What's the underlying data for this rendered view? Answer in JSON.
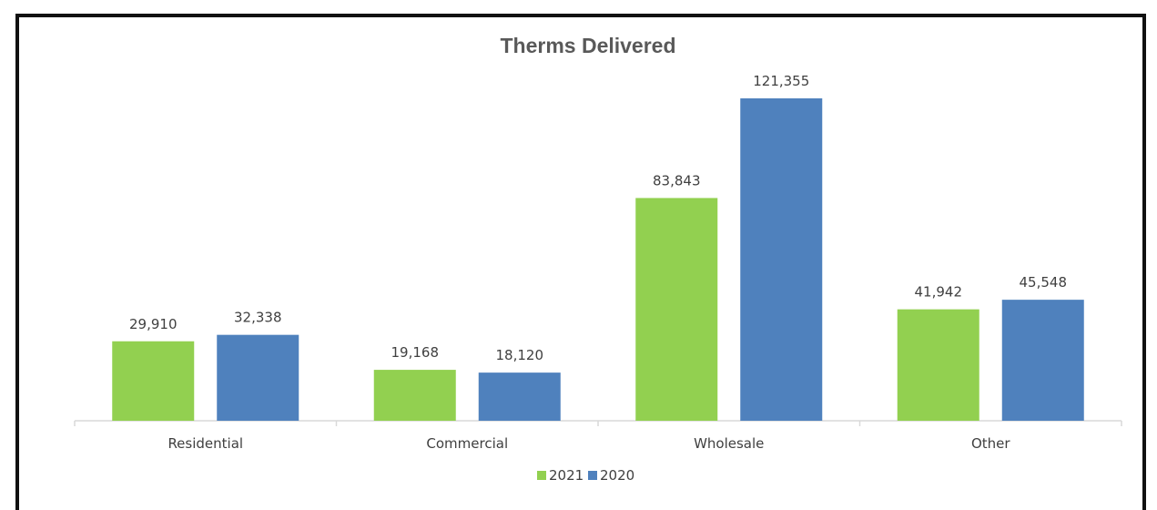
{
  "chart_data": {
    "type": "bar",
    "title": "Therms Delivered",
    "categories": [
      "Residential",
      "Commercial",
      "Wholesale",
      "Other"
    ],
    "series": [
      {
        "name": "2021",
        "color": "#92d050",
        "values": [
          29910,
          19168,
          83843,
          41942
        ],
        "labels": [
          "29,910",
          "19,168",
          "83,843",
          "41,942"
        ]
      },
      {
        "name": "2020",
        "color": "#4f81bd",
        "values": [
          32338,
          18120,
          121355,
          45548
        ],
        "labels": [
          "32,338",
          "18,120",
          "121,355",
          "45,548"
        ]
      }
    ],
    "ylim": [
      0,
      121355
    ],
    "grid": false,
    "legend_position": "bottom"
  }
}
